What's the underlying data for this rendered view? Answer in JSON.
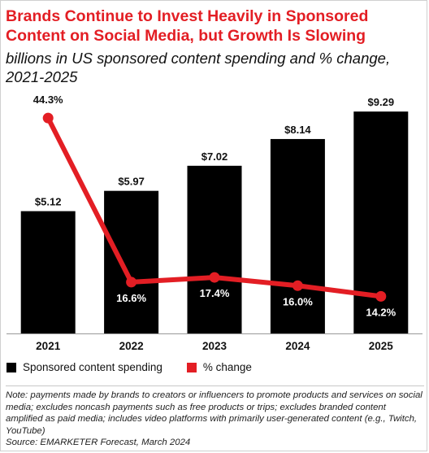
{
  "header": {
    "title": "Brands Continue to Invest Heavily in Sponsored Content on Social Media, but Growth Is Slowing",
    "subtitle": "billions in US sponsored content spending and % change, 2021-2025"
  },
  "chart_data": {
    "type": "bar",
    "categories": [
      "2021",
      "2022",
      "2023",
      "2024",
      "2025"
    ],
    "series": [
      {
        "name": "Sponsored content spending",
        "type": "bar",
        "color": "#000000",
        "values": [
          5.12,
          5.97,
          7.02,
          8.14,
          9.29
        ],
        "labels": [
          "$5.12",
          "$5.97",
          "$7.02",
          "$8.14",
          "$9.29"
        ]
      },
      {
        "name": "% change",
        "type": "line",
        "color": "#e31e24",
        "values": [
          44.3,
          16.6,
          17.4,
          16.0,
          14.2
        ],
        "labels": [
          "44.3%",
          "16.6%",
          "17.4%",
          "16.0%",
          "14.2%"
        ]
      }
    ],
    "grid": false,
    "legend": "bottom-left"
  },
  "legend": {
    "items": [
      {
        "label": "Sponsored content spending",
        "color": "#000000"
      },
      {
        "label": "% change",
        "color": "#e31e24"
      }
    ]
  },
  "notes": {
    "note": "Note: payments made by brands to creators or influencers to promote products and services on social media; excludes noncash payments such as free products or trips; excludes branded content amplified as paid media; includes video platforms with primarily user-generated content (e.g., Twitch, YouTube)",
    "source": "Source: EMARKETER Forecast, March 2024"
  }
}
